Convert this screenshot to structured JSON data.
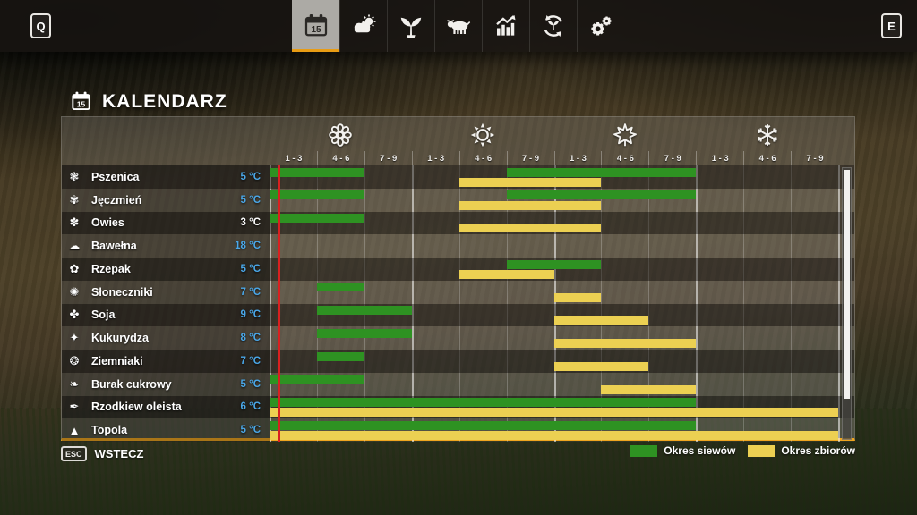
{
  "top_bar": {
    "left_key": "Q",
    "right_key": "E",
    "tabs": [
      {
        "icon": "calendar-icon",
        "selected": true
      },
      {
        "icon": "weather-icon",
        "selected": false
      },
      {
        "icon": "crops-icon",
        "selected": false
      },
      {
        "icon": "animals-icon",
        "selected": false
      },
      {
        "icon": "statistics-icon",
        "selected": false
      },
      {
        "icon": "production-cycle-icon",
        "selected": false
      },
      {
        "icon": "settings-icon",
        "selected": false
      }
    ],
    "selected_accent": "#e89c14"
  },
  "page": {
    "title": "KALENDARZ",
    "title_icon": "calendar-icon"
  },
  "calendar": {
    "seasons": [
      {
        "icon": "spring-flower-icon"
      },
      {
        "icon": "summer-sun-icon"
      },
      {
        "icon": "autumn-leaf-icon"
      },
      {
        "icon": "winter-snowflake-icon"
      }
    ],
    "period_labels": [
      "1 - 3",
      "4 - 6",
      "7 - 9",
      "1 - 3",
      "4 - 6",
      "7 - 9",
      "1 - 3",
      "4 - 6",
      "7 - 9",
      "1 - 3",
      "4 - 6",
      "7 - 9"
    ],
    "current_day_marker_color": "#d92020",
    "temp_color_default": "#4aa7e8",
    "rows": [
      {
        "icon": "wheat-icon",
        "glyph": "❃",
        "name": "Pszenica",
        "temp": "5 °C",
        "temp_color": "#4aa7e8",
        "sow": [
          [
            0,
            2
          ],
          [
            5,
            9
          ]
        ],
        "harvest": [
          [
            4,
            7
          ]
        ]
      },
      {
        "icon": "barley-icon",
        "glyph": "✾",
        "name": "Jęczmień",
        "temp": "5 °C",
        "temp_color": "#4aa7e8",
        "sow": [
          [
            0,
            2
          ],
          [
            5,
            9
          ]
        ],
        "harvest": [
          [
            4,
            7
          ]
        ]
      },
      {
        "icon": "oat-icon",
        "glyph": "✽",
        "name": "Owies",
        "temp": "3 °C",
        "temp_color": "#ffffff",
        "sow": [
          [
            0,
            2
          ]
        ],
        "harvest": [
          [
            4,
            7
          ]
        ]
      },
      {
        "icon": "cotton-icon",
        "glyph": "☁",
        "name": "Bawełna",
        "temp": "18 °C",
        "temp_color": "#4aa7e8",
        "sow": [],
        "harvest": []
      },
      {
        "icon": "canola-icon",
        "glyph": "✿",
        "name": "Rzepak",
        "temp": "5 °C",
        "temp_color": "#4aa7e8",
        "sow": [
          [
            5,
            7
          ]
        ],
        "harvest": [
          [
            4,
            6
          ]
        ]
      },
      {
        "icon": "sunflower-icon",
        "glyph": "✺",
        "name": "Słoneczniki",
        "temp": "7 °C",
        "temp_color": "#4aa7e8",
        "sow": [
          [
            1,
            2
          ]
        ],
        "harvest": [
          [
            6,
            7
          ]
        ]
      },
      {
        "icon": "soybean-icon",
        "glyph": "✤",
        "name": "Soja",
        "temp": "9 °C",
        "temp_color": "#4aa7e8",
        "sow": [
          [
            1,
            3
          ]
        ],
        "harvest": [
          [
            6,
            8
          ]
        ]
      },
      {
        "icon": "corn-icon",
        "glyph": "✦",
        "name": "Kukurydza",
        "temp": "8 °C",
        "temp_color": "#4aa7e8",
        "sow": [
          [
            1,
            3
          ]
        ],
        "harvest": [
          [
            6,
            9
          ]
        ]
      },
      {
        "icon": "potato-icon",
        "glyph": "❂",
        "name": "Ziemniaki",
        "temp": "7 °C",
        "temp_color": "#4aa7e8",
        "sow": [
          [
            1,
            2
          ]
        ],
        "harvest": [
          [
            6,
            8
          ]
        ]
      },
      {
        "icon": "sugar-beet-icon",
        "glyph": "❧",
        "name": "Burak cukrowy",
        "temp": "5 °C",
        "temp_color": "#4aa7e8",
        "sow": [
          [
            0,
            2
          ]
        ],
        "harvest": [
          [
            7,
            9
          ]
        ]
      },
      {
        "icon": "oilseed-radish-icon",
        "glyph": "✒",
        "name": "Rzodkiew oleista",
        "temp": "6 °C",
        "temp_color": "#4aa7e8",
        "sow": [
          [
            0,
            9
          ]
        ],
        "harvest": [
          [
            0,
            12
          ]
        ]
      },
      {
        "icon": "poplar-icon",
        "glyph": "▲",
        "name": "Topola",
        "temp": "5 °C",
        "temp_color": "#4aa7e8",
        "sow": [
          [
            0,
            9
          ]
        ],
        "harvest": [
          [
            0,
            12
          ]
        ]
      }
    ]
  },
  "legend": [
    {
      "label": "Okres siewów",
      "color": "#2e9222"
    },
    {
      "label": "Okres zbiorów",
      "color": "#ecd052"
    }
  ],
  "footer": {
    "key": "ESC",
    "label": "WSTECZ"
  }
}
